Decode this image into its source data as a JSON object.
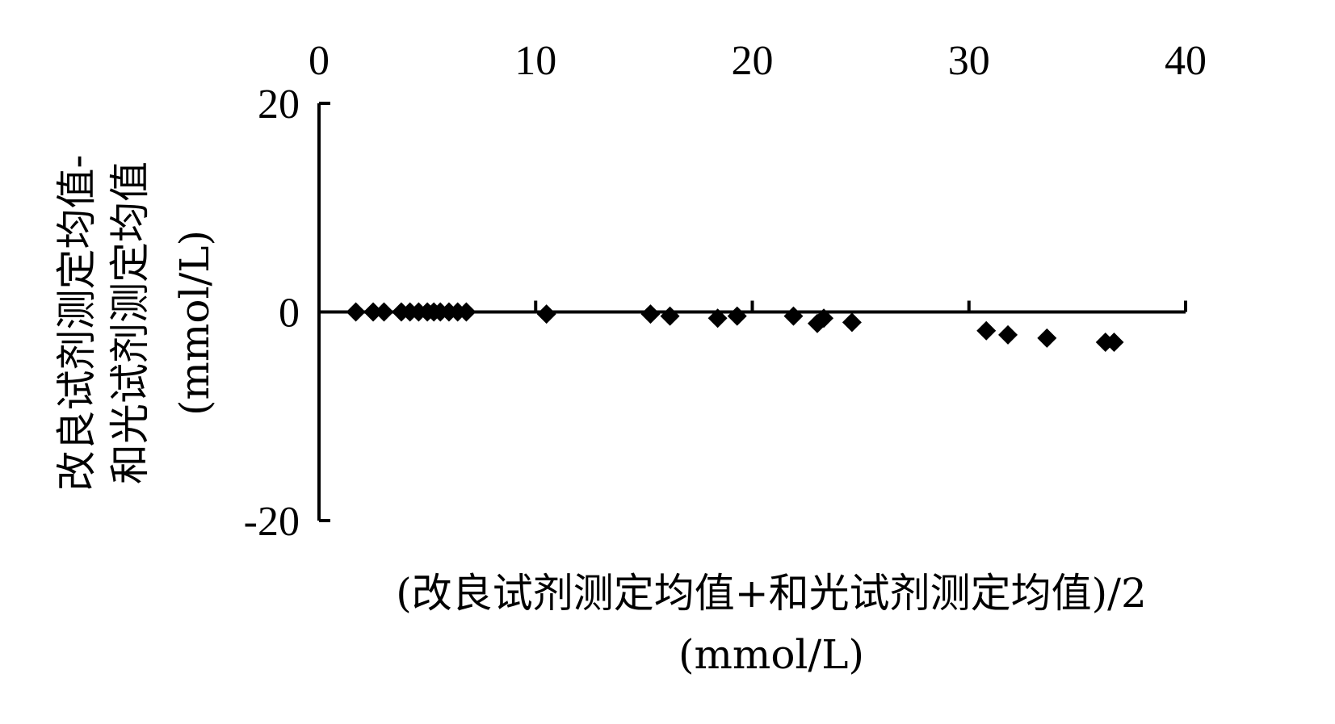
{
  "chart_data": {
    "type": "scatter",
    "title": "",
    "xlabel_line1": "(改良试剂测定均值+和光试剂测定均值)/2",
    "xlabel_line2": "(mmol/L)",
    "ylabel_line1": "改良试剂测定均值-",
    "ylabel_line2": "和光试剂测定均值",
    "ylabel_line3": "(mmol/L)",
    "xlim": [
      0,
      40
    ],
    "ylim": [
      -20,
      20
    ],
    "x_ticks": [
      0,
      10,
      20,
      30,
      40
    ],
    "y_ticks": [
      20,
      0,
      -20
    ],
    "x_tick_labels": [
      "0",
      "10",
      "20",
      "30",
      "40"
    ],
    "y_tick_labels": [
      "20",
      "0",
      "-20"
    ],
    "x_axis_position": "top",
    "x_axis_line_at_y": 0,
    "grid": false,
    "marker": "diamond",
    "marker_color": "#000000",
    "points": [
      {
        "x": 1.7,
        "y": 0.0
      },
      {
        "x": 2.5,
        "y": 0.0
      },
      {
        "x": 3.0,
        "y": 0.0
      },
      {
        "x": 3.8,
        "y": 0.0
      },
      {
        "x": 4.2,
        "y": 0.0
      },
      {
        "x": 4.6,
        "y": 0.0
      },
      {
        "x": 5.0,
        "y": 0.0
      },
      {
        "x": 5.3,
        "y": 0.0
      },
      {
        "x": 5.6,
        "y": 0.0
      },
      {
        "x": 6.0,
        "y": 0.0
      },
      {
        "x": 6.4,
        "y": 0.0
      },
      {
        "x": 6.8,
        "y": 0.0
      },
      {
        "x": 10.5,
        "y": -0.2
      },
      {
        "x": 15.3,
        "y": -0.2
      },
      {
        "x": 16.2,
        "y": -0.4
      },
      {
        "x": 18.4,
        "y": -0.6
      },
      {
        "x": 19.3,
        "y": -0.4
      },
      {
        "x": 21.9,
        "y": -0.4
      },
      {
        "x": 23.0,
        "y": -1.1
      },
      {
        "x": 23.3,
        "y": -0.6
      },
      {
        "x": 24.6,
        "y": -1.0
      },
      {
        "x": 30.8,
        "y": -1.8
      },
      {
        "x": 31.8,
        "y": -2.2
      },
      {
        "x": 33.6,
        "y": -2.5
      },
      {
        "x": 36.3,
        "y": -2.9
      },
      {
        "x": 36.7,
        "y": -2.9
      }
    ]
  }
}
